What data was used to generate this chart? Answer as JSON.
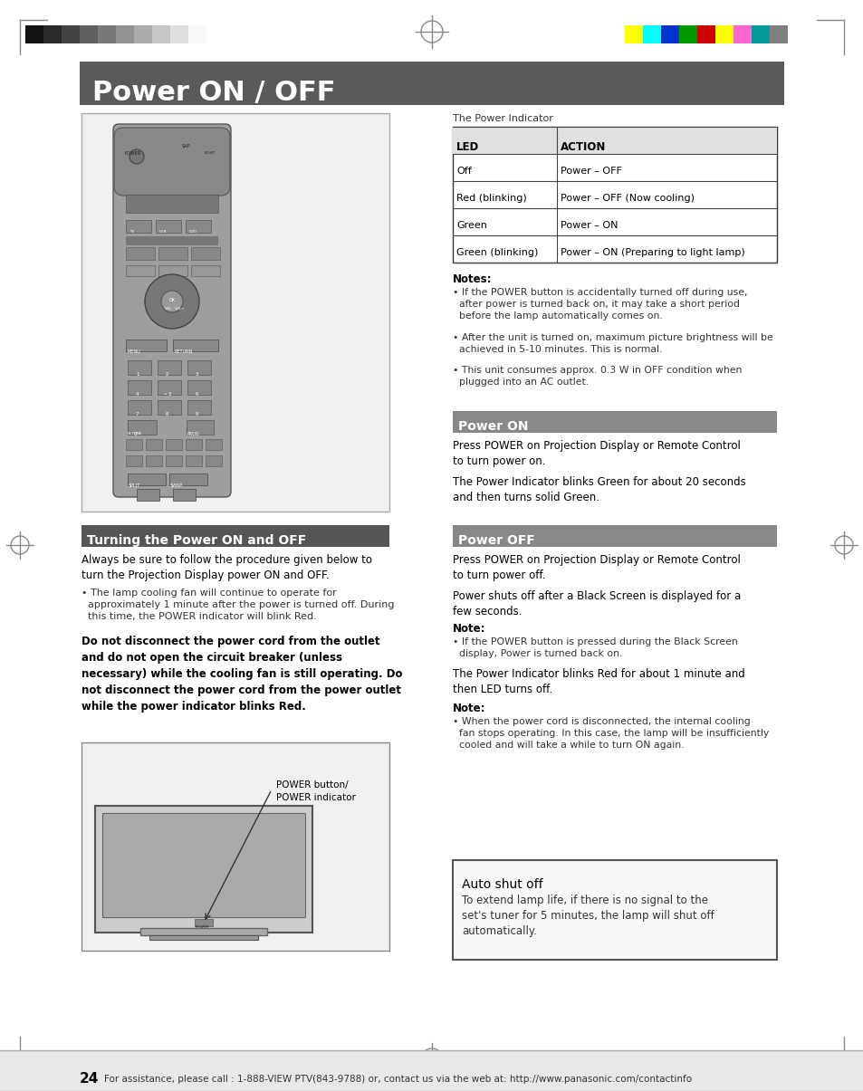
{
  "title": "Power ON / OFF",
  "title_bg": "#5a5a5a",
  "title_color": "#ffffff",
  "page_bg": "#ffffff",
  "colors_left": [
    "#111111",
    "#2a2a2a",
    "#444444",
    "#5e5e5e",
    "#787878",
    "#929292",
    "#ababab",
    "#c5c5c5",
    "#dfdfdf",
    "#f9f9f9"
  ],
  "colors_right": [
    "#ffff00",
    "#00ffff",
    "#0033cc",
    "#009900",
    "#cc0000",
    "#ffff00",
    "#ff66cc",
    "#009999",
    "#808080"
  ],
  "table_header": [
    "LED",
    "ACTION"
  ],
  "table_rows": [
    [
      "Off",
      "Power – OFF"
    ],
    [
      "Red (blinking)",
      "Power – OFF (Now cooling)"
    ],
    [
      "Green",
      "Power – ON"
    ],
    [
      "Green (blinking)",
      "Power – ON (Preparing to light lamp)"
    ]
  ],
  "notes_title": "Notes:",
  "note1": "• If the POWER button is accidentally turned off during use,\n  after power is turned back on, it may take a short period\n  before the lamp automatically comes on.",
  "note2": "• After the unit is turned on, maximum picture brightness will be\n  achieved in 5-10 minutes. This is normal.",
  "note3": "• This unit consumes approx. 0.3 W in OFF condition when\n  plugged into an AC outlet.",
  "power_on_title": "Power ON",
  "power_on_text1": "Press POWER on Projection Display or Remote Control\nto turn power on.",
  "power_on_text2": "The Power Indicator blinks Green for about 20 seconds\nand then turns solid Green.",
  "turning_title": "Turning the Power ON and OFF",
  "turning_text1": "Always be sure to follow the procedure given below to\nturn the Projection Display power ON and OFF.",
  "turning_bullet": "• The lamp cooling fan will continue to operate for\n  approximately 1 minute after the power is turned off. During\n  this time, the POWER indicator will blink Red.",
  "turning_bold": "Do not disconnect the power cord from the outlet\nand do not open the circuit breaker (unless\nnecessary) while the cooling fan is still operating. Do\nnot disconnect the power cord from the power outlet\nwhile the power indicator blinks Red.",
  "tv_label1": "POWER button/",
  "tv_label2": "POWER indicator",
  "power_off_title": "Power OFF",
  "power_off_text1": "Press POWER on Projection Display or Remote Control\nto turn power off.",
  "power_off_text2": "Power shuts off after a Black Screen is displayed for a\nfew seconds.",
  "power_off_note_title": "Note:",
  "power_off_note": "• If the POWER button is pressed during the Black Screen\n  display, Power is turned back on.",
  "power_off_text3": "The Power Indicator blinks Red for about 1 minute and\nthen LED turns off.",
  "power_off_note2_title": "Note:",
  "power_off_note2": "• When the power cord is disconnected, the internal cooling\n  fan stops operating. In this case, the lamp will be insufficiently\n  cooled and will take a while to turn ON again.",
  "auto_title": "Auto shut off",
  "auto_text": "To extend lamp life, if there is no signal to the\nset's tuner for 5 minutes, the lamp will shut off\nautomatically.",
  "footer_text": "For assistance, please call : 1-888-VIEW PTV(843-9788) or, contact us via the web at: http://www.panasonic.com/contactinfo",
  "page_number": "24"
}
